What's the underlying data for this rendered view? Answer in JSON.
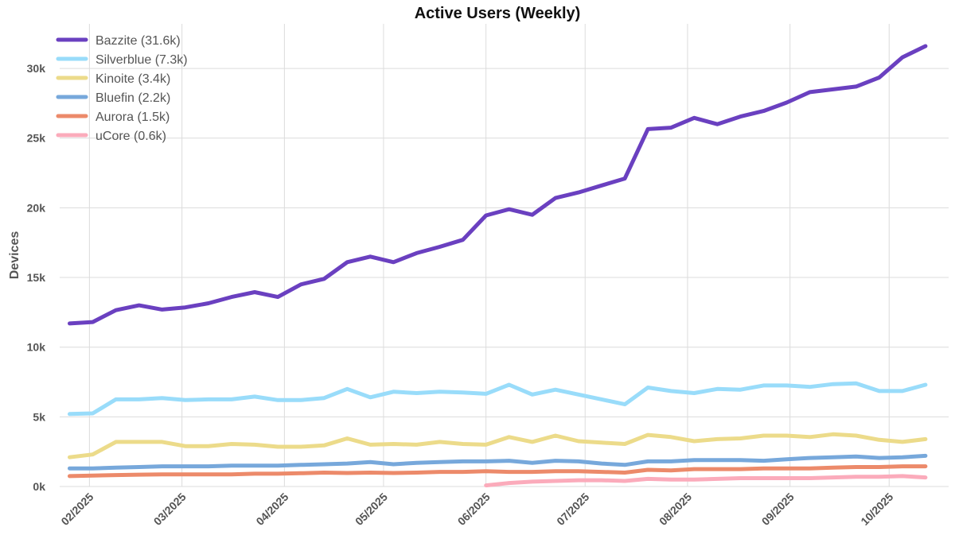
{
  "chart_data": {
    "type": "line",
    "title": "Active Users (Weekly)",
    "xlabel": "",
    "ylabel": "Devices",
    "ylim": [
      0,
      33200
    ],
    "yticks": [
      0,
      5000,
      10000,
      15000,
      20000,
      25000,
      30000
    ],
    "ytick_labels": [
      "0k",
      "5k",
      "10k",
      "15k",
      "20k",
      "25k",
      "30k"
    ],
    "xticks": [
      "2025-02-01",
      "2025-03-01",
      "2025-04-01",
      "2025-05-01",
      "2025-06-01",
      "2025-07-01",
      "2025-08-01",
      "2025-09-01",
      "2025-10-01"
    ],
    "xtick_labels": [
      "02/2025",
      "03/2025",
      "04/2025",
      "05/2025",
      "06/2025",
      "07/2025",
      "08/2025",
      "09/2025",
      "10/2025"
    ],
    "xlim": [
      "2025-01-23",
      "2025-10-19"
    ],
    "grid": true,
    "legend_position": "top-left",
    "x": [
      "2025-01-26",
      "2025-02-02",
      "2025-02-09",
      "2025-02-16",
      "2025-02-23",
      "2025-03-02",
      "2025-03-09",
      "2025-03-16",
      "2025-03-23",
      "2025-03-30",
      "2025-04-06",
      "2025-04-13",
      "2025-04-20",
      "2025-04-27",
      "2025-05-04",
      "2025-05-11",
      "2025-05-18",
      "2025-05-25",
      "2025-06-01",
      "2025-06-08",
      "2025-06-15",
      "2025-06-22",
      "2025-06-29",
      "2025-07-06",
      "2025-07-13",
      "2025-07-20",
      "2025-07-27",
      "2025-08-03",
      "2025-08-10",
      "2025-08-17",
      "2025-08-24",
      "2025-08-31",
      "2025-09-07",
      "2025-09-14",
      "2025-09-21",
      "2025-09-28",
      "2025-10-05",
      "2025-10-12"
    ],
    "series": [
      {
        "name": "Bazzite (31.6k)",
        "color": "#6a40c0",
        "values": [
          11700,
          11800,
          12650,
          13000,
          12700,
          12850,
          13150,
          13600,
          13950,
          13600,
          14500,
          14900,
          16100,
          16500,
          16100,
          16750,
          17200,
          17700,
          19450,
          19900,
          19500,
          20700,
          21100,
          21600,
          22100,
          25650,
          25750,
          26450,
          26000,
          26550,
          26950,
          27550,
          28300,
          28500,
          28700,
          29350,
          30800,
          31600
        ]
      },
      {
        "name": "Silverblue (7.3k)",
        "color": "#99dcfa",
        "values": [
          5200,
          5250,
          6250,
          6250,
          6350,
          6200,
          6250,
          6250,
          6450,
          6200,
          6200,
          6350,
          7000,
          6400,
          6800,
          6700,
          6800,
          6750,
          6650,
          7300,
          6600,
          6950,
          6600,
          6250,
          5900,
          7100,
          6850,
          6700,
          7000,
          6950,
          7250,
          7250,
          7150,
          7350,
          7400,
          6850,
          6850,
          7300
        ]
      },
      {
        "name": "Kinoite (3.4k)",
        "color": "#ecdb8a",
        "values": [
          2100,
          2300,
          3200,
          3200,
          3200,
          2900,
          2900,
          3050,
          3000,
          2850,
          2850,
          2950,
          3450,
          3000,
          3050,
          3000,
          3200,
          3050,
          3000,
          3550,
          3200,
          3650,
          3250,
          3150,
          3050,
          3700,
          3550,
          3250,
          3400,
          3450,
          3650,
          3650,
          3550,
          3750,
          3650,
          3350,
          3200,
          3400
        ]
      },
      {
        "name": "Bluefin (2.2k)",
        "color": "#77a8db",
        "values": [
          1300,
          1300,
          1350,
          1400,
          1450,
          1450,
          1450,
          1500,
          1500,
          1500,
          1550,
          1600,
          1650,
          1750,
          1600,
          1700,
          1750,
          1800,
          1800,
          1850,
          1700,
          1850,
          1800,
          1650,
          1550,
          1800,
          1800,
          1900,
          1900,
          1900,
          1850,
          1950,
          2050,
          2100,
          2150,
          2050,
          2100,
          2200
        ]
      },
      {
        "name": "Aurora (1.5k)",
        "color": "#ec8a6a",
        "values": [
          750,
          780,
          820,
          850,
          870,
          870,
          870,
          870,
          920,
          920,
          950,
          1000,
          970,
          1000,
          970,
          1000,
          1050,
          1050,
          1100,
          1050,
          1050,
          1100,
          1100,
          1050,
          1000,
          1200,
          1150,
          1250,
          1250,
          1250,
          1300,
          1300,
          1300,
          1350,
          1400,
          1400,
          1450,
          1450
        ]
      },
      {
        "name": "uCore (0.6k)",
        "color": "#fbabbb",
        "values": [
          null,
          null,
          null,
          null,
          null,
          null,
          null,
          null,
          null,
          null,
          null,
          null,
          null,
          null,
          null,
          null,
          null,
          null,
          80,
          250,
          350,
          400,
          450,
          450,
          400,
          550,
          500,
          500,
          550,
          600,
          600,
          600,
          600,
          650,
          700,
          700,
          750,
          650
        ]
      }
    ]
  }
}
